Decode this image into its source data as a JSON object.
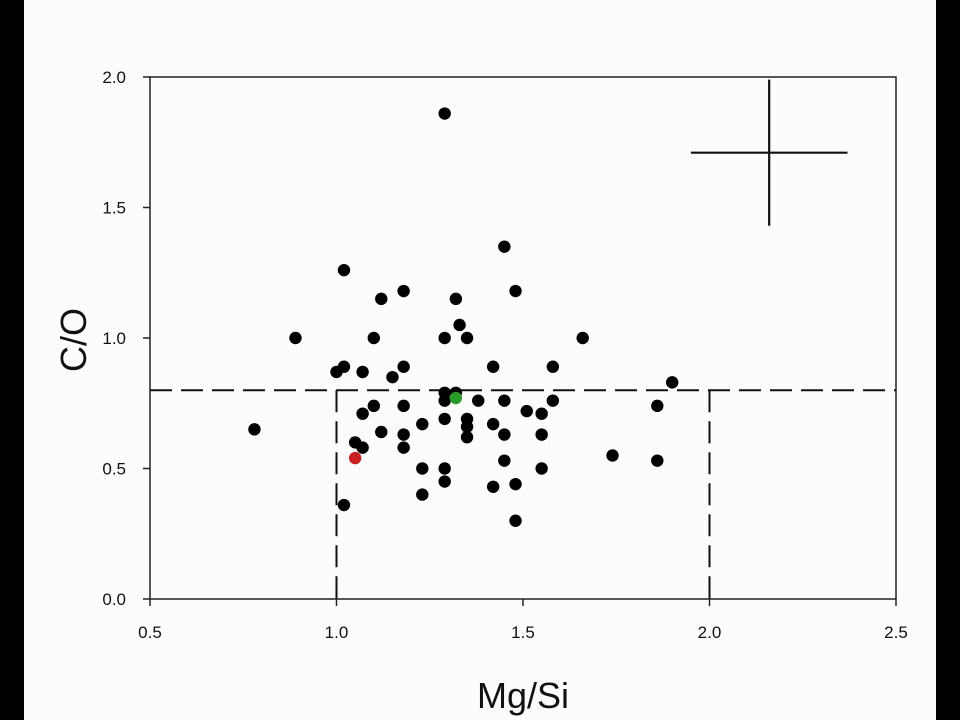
{
  "chart_data": {
    "type": "scatter",
    "title": "",
    "xlabel": "Mg/Si",
    "ylabel": "C/O",
    "xlim": [
      0.5,
      2.5
    ],
    "ylim": [
      0.0,
      2.0
    ],
    "xticks": [
      "0.5",
      "1.0",
      "1.5",
      "2.0",
      "2.5"
    ],
    "yticks": [
      "0.0",
      "0.5",
      "1.0",
      "1.5",
      "2.0"
    ],
    "grid": false,
    "reference_lines": {
      "horizontal_y": 0.8,
      "vertical_x": [
        1.0,
        2.0
      ]
    },
    "error_bar": {
      "x": 2.16,
      "y": 1.71,
      "x_err": 0.21,
      "y_err": 0.28
    },
    "series": [
      {
        "color": "#000000",
        "x": [
          1.29,
          1.45,
          1.02,
          1.48,
          1.18,
          1.12,
          1.32,
          1.33,
          0.89,
          1.1,
          1.29,
          1.35,
          1.66,
          1.42,
          1.58,
          1.02,
          1.0,
          1.07,
          1.18,
          1.15,
          1.9,
          1.29,
          1.32,
          1.1,
          1.29,
          1.38,
          1.45,
          1.18,
          1.51,
          1.55,
          1.58,
          1.86,
          1.07,
          1.35,
          1.29,
          1.23,
          1.42,
          1.35,
          0.78,
          1.12,
          1.18,
          1.45,
          1.55,
          1.35,
          1.05,
          1.07,
          1.18,
          1.74,
          1.45,
          1.86,
          1.23,
          1.29,
          1.55,
          1.29,
          1.48,
          1.42,
          1.23,
          1.02,
          1.48
        ],
        "y": [
          1.86,
          1.35,
          1.26,
          1.18,
          1.18,
          1.15,
          1.15,
          1.05,
          1.0,
          1.0,
          1.0,
          1.0,
          1.0,
          0.89,
          0.89,
          0.89,
          0.87,
          0.87,
          0.89,
          0.85,
          0.83,
          0.79,
          0.79,
          0.74,
          0.76,
          0.76,
          0.76,
          0.74,
          0.72,
          0.71,
          0.76,
          0.74,
          0.71,
          0.69,
          0.69,
          0.67,
          0.67,
          0.66,
          0.65,
          0.64,
          0.63,
          0.63,
          0.63,
          0.62,
          0.6,
          0.58,
          0.58,
          0.55,
          0.53,
          0.53,
          0.5,
          0.5,
          0.5,
          0.45,
          0.44,
          0.43,
          0.4,
          0.36,
          0.3
        ]
      },
      {
        "color": "#2a9a2a",
        "x": [
          1.32
        ],
        "y": [
          0.77
        ]
      },
      {
        "color": "#c82020",
        "x": [
          1.05
        ],
        "y": [
          0.54
        ]
      }
    ]
  }
}
